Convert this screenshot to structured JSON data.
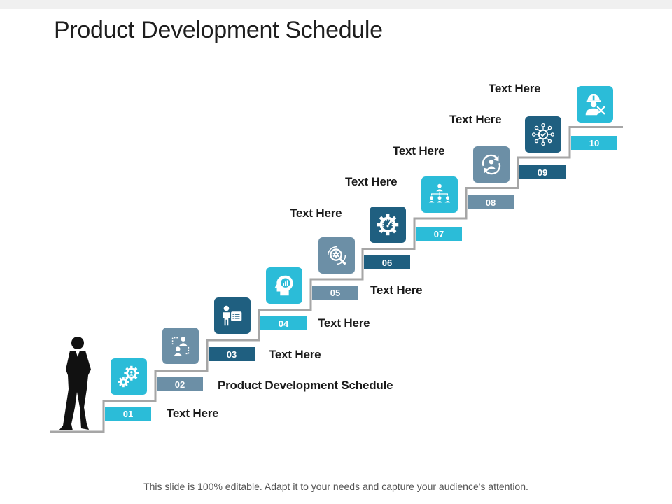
{
  "title": "Product Development Schedule",
  "footer": "This slide is 100% editable. Adapt it to your needs and capture your audience's attention.",
  "colors": {
    "teal": "#2bbcd8",
    "slate": "#6c8fa6",
    "navy": "#1f5f80",
    "stair": "#a6a6a6",
    "text": "#1a1a1a"
  },
  "steps": [
    {
      "number": "01",
      "label": "Text Here",
      "icon": "gears-person-icon",
      "tile_color": "#2bbcd8",
      "badge_color": "#2bbcd8"
    },
    {
      "number": "02",
      "label": "Product Development Schedule",
      "icon": "people-swap-icon",
      "tile_color": "#6c8fa6",
      "badge_color": "#6c8fa6"
    },
    {
      "number": "03",
      "label": "Text Here",
      "icon": "presenter-checklist-icon",
      "tile_color": "#1f5f80",
      "badge_color": "#1f5f80"
    },
    {
      "number": "04",
      "label": "Text Here",
      "icon": "head-chart-icon",
      "tile_color": "#2bbcd8",
      "badge_color": "#2bbcd8"
    },
    {
      "number": "05",
      "label": "Text Here",
      "icon": "gear-magnifier-icon",
      "tile_color": "#6c8fa6",
      "badge_color": "#6c8fa6"
    },
    {
      "number": "06",
      "label": "Text Here",
      "icon": "gear-gauge-icon",
      "tile_color": "#1f5f80",
      "badge_color": "#1f5f80"
    },
    {
      "number": "07",
      "label": "Text Here",
      "icon": "org-chart-icon",
      "tile_color": "#2bbcd8",
      "badge_color": "#2bbcd8"
    },
    {
      "number": "08",
      "label": "Text Here",
      "icon": "user-cycle-icon",
      "tile_color": "#6c8fa6",
      "badge_color": "#6c8fa6"
    },
    {
      "number": "09",
      "label": "Text Here",
      "icon": "network-check-icon",
      "tile_color": "#1f5f80",
      "badge_color": "#1f5f80"
    },
    {
      "number": "10",
      "label": "Text Here",
      "icon": "worker-tools-icon",
      "tile_color": "#2bbcd8",
      "badge_color": "#2bbcd8"
    }
  ]
}
